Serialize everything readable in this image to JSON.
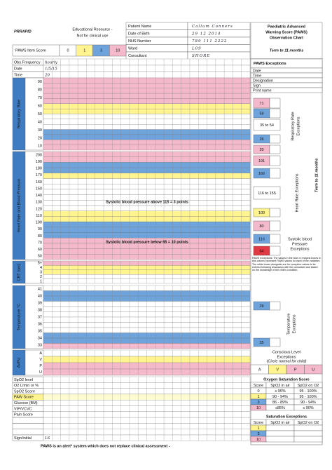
{
  "header": {
    "logo": "PRRAPID",
    "disclaimer": [
      "Educational Resource -",
      "Not for clinical use"
    ],
    "patient": [
      {
        "label": "Patient Name",
        "value": "Callum Conners"
      },
      {
        "label": "Date of Birth",
        "value": "29 12 2014"
      },
      {
        "label": "NHS Number",
        "value": "789 111 2222"
      },
      {
        "label": "Ward",
        "value": "L09"
      },
      {
        "label": "Consultant",
        "value": "SHORE"
      }
    ],
    "chart_title": [
      "Paediatric Advanced",
      "Warning Score (PAWS)",
      "Observation Chart"
    ],
    "age_range": "Term to 11 months"
  },
  "item_score": {
    "label": "PAWS Item Score",
    "scores": [
      "0",
      "1",
      "3",
      "10"
    ]
  },
  "obs_rows": [
    {
      "label": "Obs Frequency",
      "entry": "hourly"
    },
    {
      "label": "Date",
      "entry": "1/5/15"
    },
    {
      "label": "Time",
      "entry": "20"
    }
  ],
  "sections": [
    {
      "title": "Respiratory Rate",
      "ticks": [
        "90",
        "80",
        "70",
        "60",
        "50",
        "40",
        "30",
        "20",
        "10"
      ]
    },
    {
      "title": "Heart Rate and Blood Pressure",
      "ticks": [
        "200",
        "190",
        "180",
        "170",
        "160",
        "150",
        "140",
        "130",
        "120",
        "110",
        "100",
        "90",
        "80",
        "70",
        "60",
        "50"
      ]
    },
    {
      "title": "CRT (sec)",
      "ticks": [
        "5+",
        "4",
        "3",
        "2",
        "1"
      ]
    },
    {
      "title": "Temperature °C",
      "ticks": [
        "41",
        "40",
        "39",
        "38",
        "37",
        "36",
        "35",
        "34",
        "33"
      ]
    },
    {
      "title": "AVPU",
      "ticks": [
        "A",
        "V",
        "P",
        "U"
      ]
    }
  ],
  "annotations": [
    "Systolic blood pressure above 115 = 3 points",
    "Systolic blood pressure below 65 = 10 points"
  ],
  "bottom_rows": [
    "SpO2 level",
    "O2 L/min or %",
    "SpO2 Score",
    "PAW Score",
    "Glucose (BM)",
    "VIP/VCVC",
    "Pain Score",
    null,
    null,
    null,
    "Sign/initial"
  ],
  "sign_entry": "LS",
  "exceptions": {
    "title": "PAWS Exceptions",
    "fields": [
      "Date",
      "Time",
      "Designation",
      "Sign",
      "Print name"
    ],
    "resp": {
      "label": [
        "Respiratory Rate",
        "Exceptions"
      ],
      "cells": [
        "71",
        "59",
        "35 to 54",
        "26",
        "20"
      ]
    },
    "hr": {
      "label": [
        "Heart Rate Exceptions"
      ],
      "cells": [
        "191",
        "166",
        "116 to 155",
        "100",
        "80"
      ]
    },
    "bp": {
      "label": [
        "Systolic blood",
        "Pressure",
        "Exceptions"
      ],
      "cells": [
        "116",
        "64"
      ]
    },
    "note": "PAWS exceptions: The values in the blue or red/pink boxes in this column represent PAWS values for each of the variables. The white boxes alongside are for exception values to be entered following discussion with the consultant and based on the knowledge of the child's condition.",
    "temp": {
      "label": [
        "Temperature",
        "Exceptions"
      ],
      "cells": [
        "39",
        "35"
      ]
    },
    "conscious": {
      "label": [
        "Conscious Level",
        "Exceptions"
      ],
      "hint": "(Circle normal for child)",
      "levels": [
        "A",
        "V",
        "P",
        "U"
      ]
    },
    "oxygen": {
      "title": "Oxygen Saturation Score",
      "header": [
        "Score",
        "SpO2 in air",
        "SpO2 on O2"
      ],
      "rows": [
        [
          "0",
          "≥ 95%",
          "95 - 100%"
        ],
        [
          "1",
          "90 - 94%",
          "95 - 100%"
        ],
        [
          "3",
          "86 - 89%",
          "90 - 94%"
        ],
        [
          "10",
          "≤85%",
          "≤ 90%"
        ]
      ]
    },
    "saturation": {
      "title": "Saturation Exceptions",
      "header": [
        "Score",
        "SpO2 in air",
        "SpO2 on O2"
      ],
      "rows": [
        [
          "1"
        ],
        [
          "3"
        ],
        [
          "10"
        ]
      ]
    }
  },
  "footer": "PAWS is an alert* system which does not replace clinical assessment -"
}
